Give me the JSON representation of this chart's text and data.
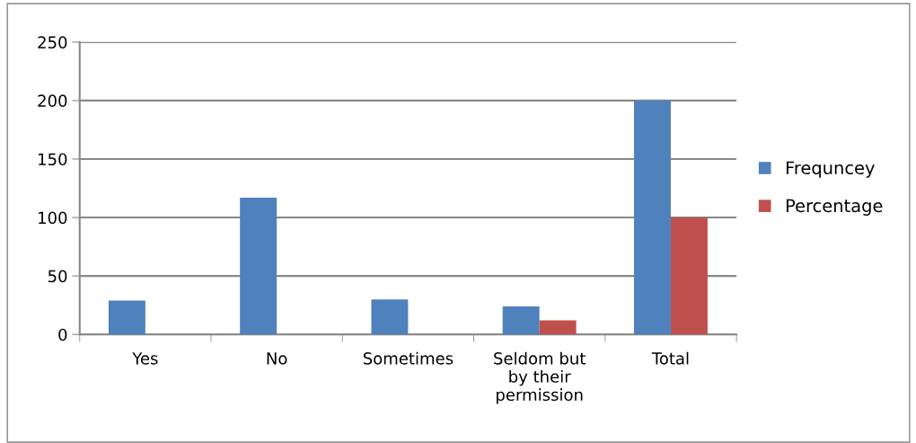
{
  "chart_data": {
    "type": "bar",
    "categories": [
      "Yes",
      "No",
      "Sometimes",
      "Seldom but\nby their\npermission",
      "Total"
    ],
    "series": [
      {
        "name": "Frequncey",
        "color": "#4f81bd",
        "values": [
          29,
          117,
          30,
          24,
          200
        ]
      },
      {
        "name": "Percentage",
        "color": "#c0504d",
        "values": [
          0,
          0,
          0,
          12,
          100
        ]
      }
    ],
    "ylim": [
      0,
      250
    ],
    "yticks": [
      0,
      50,
      100,
      150,
      200,
      250
    ],
    "grid": "y",
    "legend": "right"
  }
}
